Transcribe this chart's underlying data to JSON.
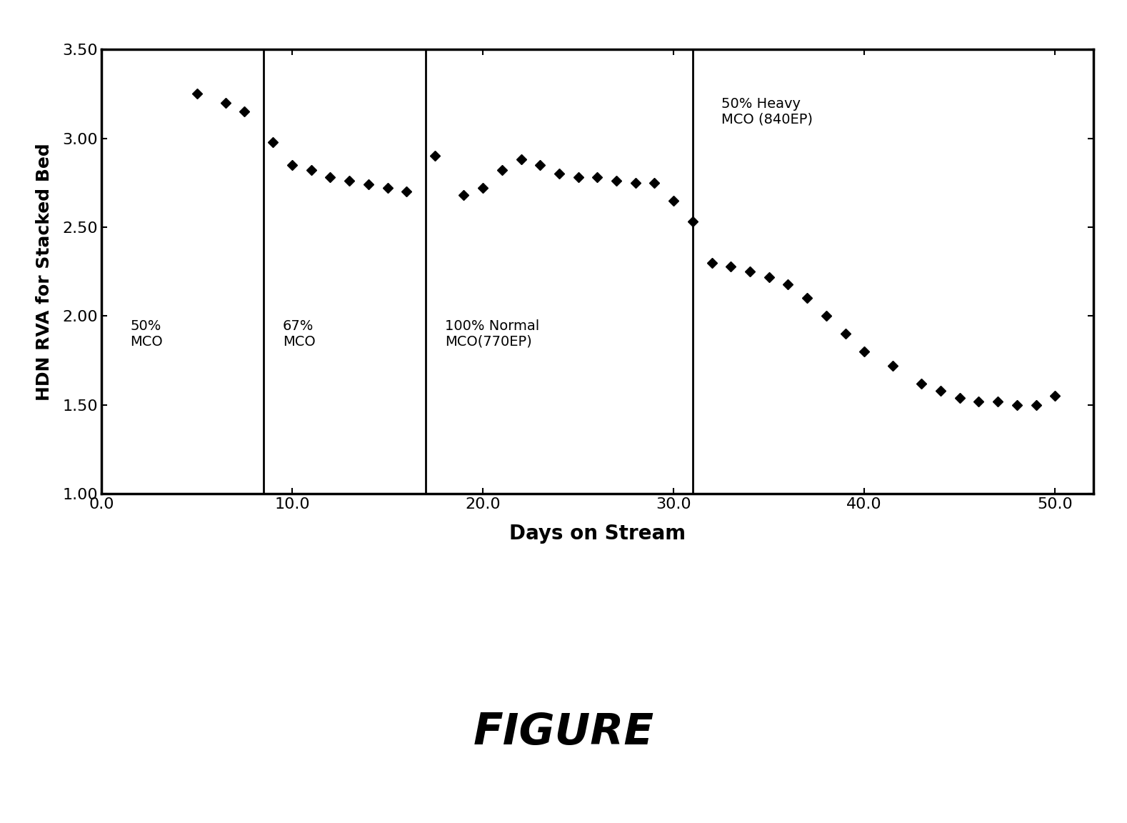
{
  "x_data": [
    5.0,
    6.5,
    7.5,
    9.0,
    10.0,
    11.0,
    12.0,
    13.0,
    14.0,
    15.0,
    16.0,
    17.5,
    19.0,
    20.0,
    21.0,
    22.0,
    23.0,
    24.0,
    25.0,
    26.0,
    27.0,
    28.0,
    29.0,
    30.0,
    31.0,
    32.0,
    33.0,
    34.0,
    35.0,
    36.0,
    37.0,
    38.0,
    39.0,
    40.0,
    41.5,
    43.0,
    44.0,
    45.0,
    46.0,
    47.0,
    48.0,
    49.0,
    50.0
  ],
  "y_data": [
    3.25,
    3.2,
    3.15,
    2.98,
    2.85,
    2.82,
    2.78,
    2.76,
    2.74,
    2.72,
    2.7,
    2.9,
    2.68,
    2.72,
    2.82,
    2.88,
    2.85,
    2.8,
    2.78,
    2.78,
    2.76,
    2.75,
    2.75,
    2.65,
    2.53,
    2.3,
    2.28,
    2.25,
    2.22,
    2.18,
    2.1,
    2.0,
    1.9,
    1.8,
    1.72,
    1.62,
    1.58,
    1.54,
    1.52,
    1.52,
    1.5,
    1.5,
    1.55
  ],
  "vlines": [
    8.5,
    17.0,
    31.0
  ],
  "xlim": [
    0.0,
    52.0
  ],
  "ylim": [
    1.0,
    3.5
  ],
  "xticks": [
    0.0,
    10.0,
    20.0,
    30.0,
    40.0,
    50.0
  ],
  "yticks": [
    1.0,
    1.5,
    2.0,
    2.5,
    3.0,
    3.5
  ],
  "xlabel": "Days on Stream",
  "ylabel": "HDN RVA for Stacked Bed",
  "ann1_text": "50%\nMCO",
  "ann1_x": 1.5,
  "ann1_y": 1.9,
  "ann2_text": "67%\nMCO",
  "ann2_x": 9.5,
  "ann2_y": 1.9,
  "ann3_text": "100% Normal\nMCO(770EP)",
  "ann3_x": 18.0,
  "ann3_y": 1.9,
  "ann4_text": "50% Heavy\nMCO (840EP)",
  "ann4_x": 32.5,
  "ann4_y": 3.15,
  "marker_color": "#000000",
  "marker": "D",
  "marker_size": 7,
  "figure_label": "FIGURE",
  "background_color": "#ffffff",
  "ann_fontsize": 14,
  "tick_fontsize": 16,
  "xlabel_fontsize": 20,
  "ylabel_fontsize": 18
}
